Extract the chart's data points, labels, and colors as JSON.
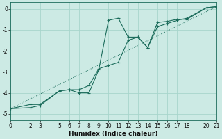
{
  "xlabel": "Humidex (Indice chaleur)",
  "bg_color": "#cceae4",
  "line_color": "#1a6b5a",
  "grid_color": "#a8d5cc",
  "xlim": [
    0,
    21
  ],
  "ylim": [
    -5.3,
    0.3
  ],
  "xticks": [
    0,
    2,
    3,
    5,
    6,
    7,
    8,
    9,
    10,
    11,
    12,
    13,
    14,
    15,
    16,
    17,
    18,
    20,
    21
  ],
  "yticks": [
    0,
    -1,
    -2,
    -3,
    -4,
    -5
  ],
  "line1_x": [
    0,
    2,
    3,
    5,
    6,
    7,
    8,
    9,
    10,
    11,
    12,
    13,
    14,
    15,
    16,
    17,
    18,
    20,
    21
  ],
  "line1_y": [
    -4.75,
    -4.7,
    -4.6,
    -3.9,
    -3.85,
    -4.0,
    -4.0,
    -2.9,
    -0.55,
    -0.45,
    -1.35,
    -1.35,
    -1.85,
    -0.85,
    -0.7,
    -0.55,
    -0.45,
    0.05,
    0.1
  ],
  "line2_x": [
    0,
    2,
    3,
    5,
    6,
    7,
    8,
    9,
    10,
    11,
    12,
    13,
    14,
    15,
    16,
    17,
    18,
    20,
    21
  ],
  "line2_y": [
    -4.75,
    -4.55,
    -4.55,
    -3.9,
    -3.85,
    -3.85,
    -3.65,
    -2.85,
    -2.7,
    -2.55,
    -1.5,
    -1.35,
    -1.85,
    -0.65,
    -0.6,
    -0.5,
    -0.5,
    0.05,
    0.1
  ],
  "line3_x": [
    0,
    21
  ],
  "line3_y": [
    -4.75,
    0.1
  ],
  "tick_fontsize": 5.5,
  "xlabel_fontsize": 6.5
}
